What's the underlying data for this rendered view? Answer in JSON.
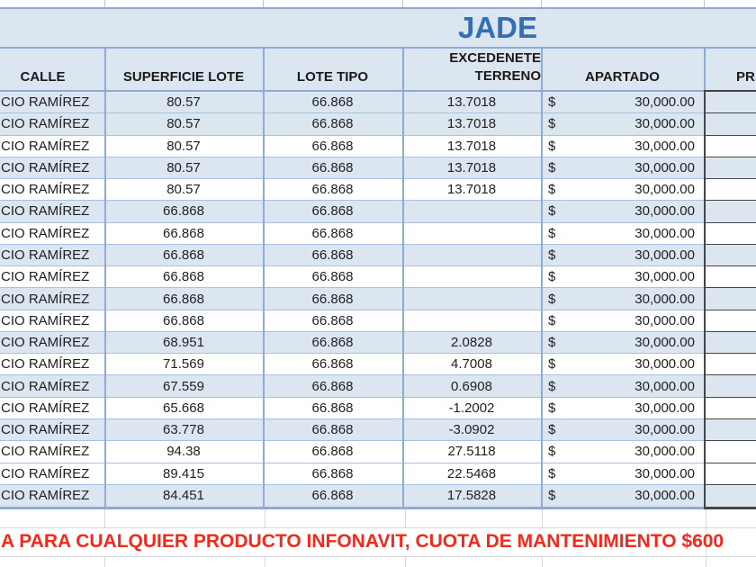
{
  "sheet": {
    "title": "JADE",
    "header": {
      "calle": "CALLE",
      "superficie": "SUPERFICIE LOTE",
      "lote_tipo": "LOTE TIPO",
      "excedente_line1": "EXCEDENETE",
      "excedente_line2": "TERRENO",
      "apartado": "APARTADO",
      "precio_partial": "PR"
    },
    "currency_symbol": "$",
    "rows": [
      {
        "calle": "CIO RAMÍREZ",
        "superficie": "80.57",
        "lote_tipo": "66.868",
        "excedente": "13.7018",
        "apartado": "30,000.00",
        "shaded": true
      },
      {
        "calle": "CIO RAMÍREZ",
        "superficie": "80.57",
        "lote_tipo": "66.868",
        "excedente": "13.7018",
        "apartado": "30,000.00",
        "shaded": true
      },
      {
        "calle": "CIO RAMÍREZ",
        "superficie": "80.57",
        "lote_tipo": "66.868",
        "excedente": "13.7018",
        "apartado": "30,000.00",
        "shaded": false
      },
      {
        "calle": "CIO RAMÍREZ",
        "superficie": "80.57",
        "lote_tipo": "66.868",
        "excedente": "13.7018",
        "apartado": "30,000.00",
        "shaded": true
      },
      {
        "calle": "CIO RAMÍREZ",
        "superficie": "80.57",
        "lote_tipo": "66.868",
        "excedente": "13.7018",
        "apartado": "30,000.00",
        "shaded": false
      },
      {
        "calle": "CIO RAMÍREZ",
        "superficie": "66.868",
        "lote_tipo": "66.868",
        "excedente": "",
        "apartado": "30,000.00",
        "shaded": true
      },
      {
        "calle": "CIO RAMÍREZ",
        "superficie": "66.868",
        "lote_tipo": "66.868",
        "excedente": "",
        "apartado": "30,000.00",
        "shaded": false
      },
      {
        "calle": "CIO RAMÍREZ",
        "superficie": "66.868",
        "lote_tipo": "66.868",
        "excedente": "",
        "apartado": "30,000.00",
        "shaded": true
      },
      {
        "calle": "CIO RAMÍREZ",
        "superficie": "66.868",
        "lote_tipo": "66.868",
        "excedente": "",
        "apartado": "30,000.00",
        "shaded": false
      },
      {
        "calle": "CIO RAMÍREZ",
        "superficie": "66.868",
        "lote_tipo": "66.868",
        "excedente": "",
        "apartado": "30,000.00",
        "shaded": true
      },
      {
        "calle": "CIO RAMÍREZ",
        "superficie": "66.868",
        "lote_tipo": "66.868",
        "excedente": "",
        "apartado": "30,000.00",
        "shaded": false
      },
      {
        "calle": "CIO RAMÍREZ",
        "superficie": "68.951",
        "lote_tipo": "66.868",
        "excedente": "2.0828",
        "apartado": "30,000.00",
        "shaded": true
      },
      {
        "calle": "CIO RAMÍREZ",
        "superficie": "71.569",
        "lote_tipo": "66.868",
        "excedente": "4.7008",
        "apartado": "30,000.00",
        "shaded": false
      },
      {
        "calle": "CIO RAMÍREZ",
        "superficie": "67.559",
        "lote_tipo": "66.868",
        "excedente": "0.6908",
        "apartado": "30,000.00",
        "shaded": true
      },
      {
        "calle": "CIO RAMÍREZ",
        "superficie": "65.668",
        "lote_tipo": "66.868",
        "excedente": "-1.2002",
        "apartado": "30,000.00",
        "shaded": false
      },
      {
        "calle": "CIO RAMÍREZ",
        "superficie": "63.778",
        "lote_tipo": "66.868",
        "excedente": "-3.0902",
        "apartado": "30,000.00",
        "shaded": true
      },
      {
        "calle": "CIO RAMÍREZ",
        "superficie": "94.38",
        "lote_tipo": "66.868",
        "excedente": "27.5118",
        "apartado": "30,000.00",
        "shaded": false
      },
      {
        "calle": "CIO RAMÍREZ",
        "superficie": "89.415",
        "lote_tipo": "66.868",
        "excedente": "22.5468",
        "apartado": "30,000.00",
        "shaded": false
      },
      {
        "calle": "CIO RAMÍREZ",
        "superficie": "84.451",
        "lote_tipo": "66.868",
        "excedente": "17.5828",
        "apartado": "30,000.00",
        "shaded": true
      }
    ],
    "footer_note": "A PARA CUALQUIER PRODUCTO INFONAVIT, CUOTA DE MANTENIMIENTO $600",
    "colors": {
      "band": "#DCE6F1",
      "grid_blue": "#8FABD4",
      "grid_dark": "#454545",
      "grid_faint": "#D8D8D8",
      "title_text": "#346FB4",
      "note_red": "#F5281B",
      "cell_text": "#1F1F1F"
    }
  }
}
